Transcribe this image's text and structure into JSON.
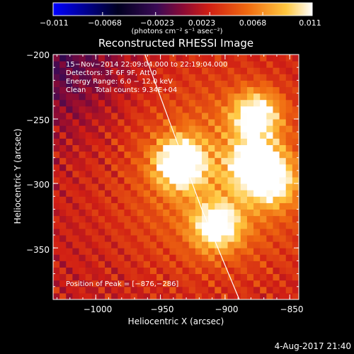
{
  "chart_data": {
    "type": "heatmap",
    "title": "Reconstructed RHESSI Image",
    "xlabel": "Heliocentric X (arcsec)",
    "ylabel": "Heliocentric Y (arcsec)",
    "xlim": [
      -1033,
      -843
    ],
    "ylim": [
      -390,
      -200
    ],
    "x_ticks": [
      -1000,
      -950,
      -900,
      -850
    ],
    "x_tick_labels": [
      "−1000",
      "−950",
      "−900",
      "−850"
    ],
    "y_ticks": [
      -200,
      -250,
      -300,
      -350
    ],
    "y_tick_labels": [
      "−200",
      "−250",
      "−300",
      "−350"
    ],
    "colormap": "thermal (blue–black–purple–red–orange–yellow–white)",
    "colorbar": {
      "range": [
        -0.011,
        0.011
      ],
      "ticks": [
        -0.011,
        -0.0068,
        -0.0023,
        0.0023,
        0.0068,
        0.011
      ],
      "tick_labels": [
        "−0.011",
        "−0.0068",
        "−0.0023",
        "0.0023",
        "0.0068",
        "0.011"
      ],
      "units_label": "(photons cm⁻² s⁻¹ asec⁻²)"
    },
    "annotations": [
      "15−Nov−2014 22:09:04.000 to 22:19:04.000",
      "Detectors: 3F 6F 9F, Att 0",
      "Energy Range: 6.0 − 12.0 keV",
      "Clean    Total counts: 9.34E+04"
    ],
    "peak_label": "Position of Peak = [−876,−286]",
    "peak_position": [
      -876,
      -286
    ],
    "sources": [
      {
        "x": -935,
        "y": -284,
        "intensity": 1.0
      },
      {
        "x": -876,
        "y": -286,
        "intensity": 1.0
      },
      {
        "x": -876,
        "y": -247,
        "intensity": 0.8
      },
      {
        "x": -906,
        "y": -333,
        "intensity": 0.75
      },
      {
        "x": -862,
        "y": -300,
        "intensity": 0.55
      }
    ],
    "limb_line": [
      [
        -962,
        -200
      ],
      [
        -940,
        -260
      ],
      [
        -918,
        -320
      ],
      [
        -889,
        -390
      ]
    ],
    "background_level": 0.2
  },
  "footer": {
    "timestamp": "4-Aug-2017 21:40"
  }
}
